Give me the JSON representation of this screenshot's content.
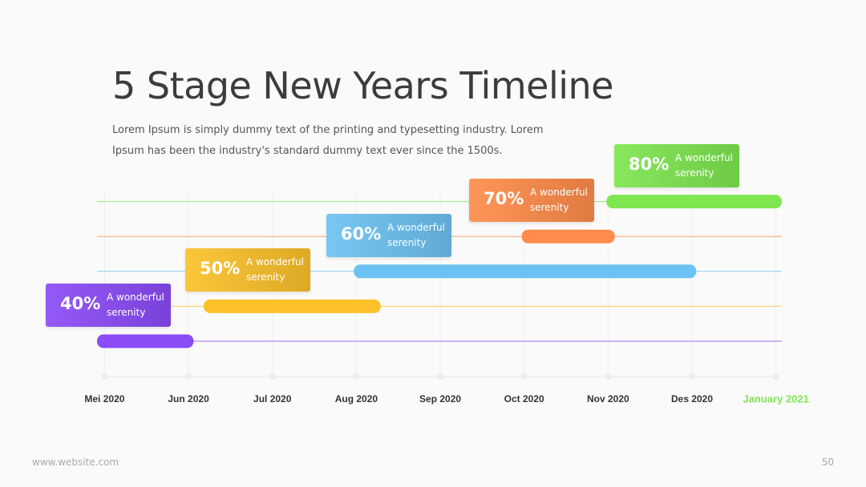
{
  "header": {
    "title": "5 Stage New Years Timeline",
    "subtitle": "Lorem Ipsum is simply dummy text of the printing and typesetting industry. Lorem Ipsum has been the industry's standard dummy text ever since the 1500s."
  },
  "chart_data": {
    "type": "gantt",
    "xlim": [
      -0.09,
      8.07
    ],
    "xticks": [
      {
        "value": 0,
        "label": "Mei 2020"
      },
      {
        "value": 1,
        "label": "Jun 2020"
      },
      {
        "value": 2,
        "label": "Jul 2020"
      },
      {
        "value": 3,
        "label": "Aug 2020"
      },
      {
        "value": 4,
        "label": "Sep 2020"
      },
      {
        "value": 5,
        "label": "Oct 2020"
      },
      {
        "value": 6,
        "label": "Nov 2020"
      },
      {
        "value": 7,
        "label": "Des 2020"
      },
      {
        "value": 8,
        "label": "January 2021"
      }
    ],
    "grid": true,
    "tasks": [
      {
        "label": "40%",
        "text": "A wonderful serenity",
        "color": "#8b4bf7",
        "start": -0.09,
        "end": 1.06
      },
      {
        "label": "50%",
        "text": "A wonderful serenity",
        "color": "#fcc12a",
        "start": 1.18,
        "end": 3.29
      },
      {
        "label": "60%",
        "text": "A wonderful serenity",
        "color": "#6cc2f2",
        "start": 2.97,
        "end": 7.05
      },
      {
        "label": "70%",
        "text": "A wonderful serenity",
        "color": "#ff8c4a",
        "start": 4.97,
        "end": 6.08
      },
      {
        "label": "80%",
        "text": "A wonderful serenity",
        "color": "#7ee64f",
        "start": 5.98,
        "end": 8.07
      }
    ]
  },
  "footer": {
    "website": "www.website.com",
    "page": "50"
  }
}
